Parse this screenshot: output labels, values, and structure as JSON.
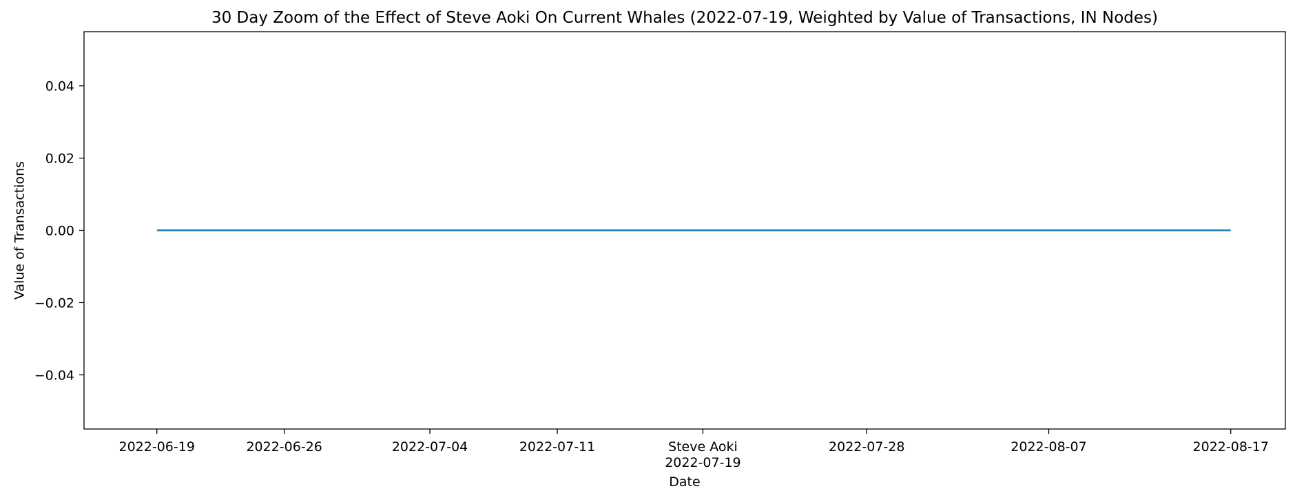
{
  "chart_data": {
    "type": "line",
    "title": "30 Day Zoom of the Effect of Steve Aoki On Current Whales (2022-07-19, Weighted by Value of Transactions, IN Nodes)",
    "xlabel": "Date",
    "ylabel": "Value of Transactions",
    "xlim": [
      "2022-06-15",
      "2022-08-20"
    ],
    "ylim": [
      -0.055,
      0.055
    ],
    "x_ticks": [
      {
        "date": "2022-06-19",
        "label": "2022-06-19"
      },
      {
        "date": "2022-06-26",
        "label": "2022-06-26"
      },
      {
        "date": "2022-07-04",
        "label": "2022-07-04"
      },
      {
        "date": "2022-07-11",
        "label": "2022-07-11"
      },
      {
        "date": "2022-07-19",
        "label": "2022-07-19",
        "event": "Steve Aoki"
      },
      {
        "date": "2022-07-28",
        "label": "2022-07-28"
      },
      {
        "date": "2022-08-07",
        "label": "2022-08-07"
      },
      {
        "date": "2022-08-17",
        "label": "2022-08-17"
      }
    ],
    "y_ticks": [
      {
        "value": 0.04,
        "label": "0.04"
      },
      {
        "value": 0.02,
        "label": "0.02"
      },
      {
        "value": 0.0,
        "label": "0.00"
      },
      {
        "value": -0.02,
        "label": "−0.02"
      },
      {
        "value": -0.04,
        "label": "−0.04"
      }
    ],
    "grid": false,
    "legend": "none",
    "series": [
      {
        "color": "#1f77b4",
        "points": [
          {
            "x": "2022-06-19",
            "y": 0
          },
          {
            "x": "2022-06-26",
            "y": 0
          },
          {
            "x": "2022-07-04",
            "y": 0
          },
          {
            "x": "2022-07-11",
            "y": 0
          },
          {
            "x": "2022-07-19",
            "y": 0
          },
          {
            "x": "2022-07-28",
            "y": 0
          },
          {
            "x": "2022-08-07",
            "y": 0
          },
          {
            "x": "2022-08-17",
            "y": 0
          }
        ]
      }
    ]
  }
}
